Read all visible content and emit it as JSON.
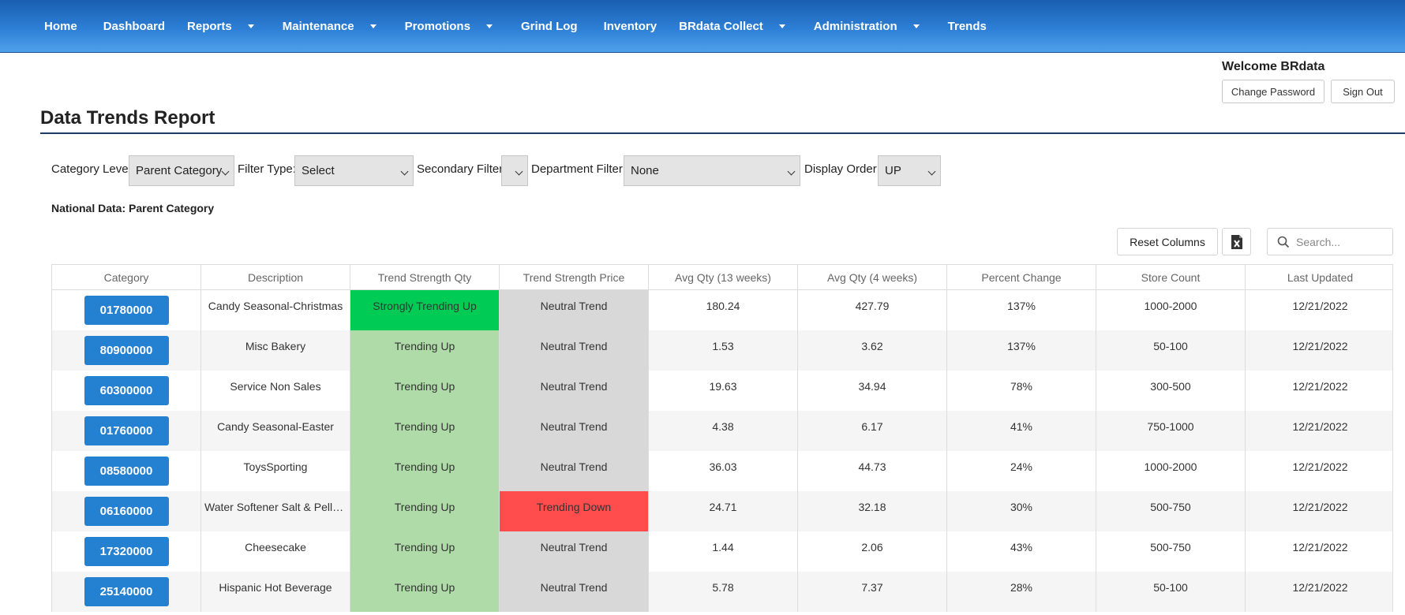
{
  "nav": {
    "items": [
      {
        "label": "Home",
        "dropdown": false
      },
      {
        "label": "Dashboard",
        "dropdown": false
      },
      {
        "label": "Reports",
        "dropdown": true
      },
      {
        "label": "Maintenance",
        "dropdown": true
      },
      {
        "label": "Promotions",
        "dropdown": true
      },
      {
        "label": "Grind Log",
        "dropdown": false
      },
      {
        "label": "Inventory",
        "dropdown": false
      },
      {
        "label": "BRdata Collect",
        "dropdown": true
      },
      {
        "label": "Administration",
        "dropdown": true
      },
      {
        "label": "Trends",
        "dropdown": false
      }
    ]
  },
  "user": {
    "welcome": "Welcome BRdata",
    "change_password": "Change Password",
    "sign_out": "Sign Out"
  },
  "page": {
    "title": "Data Trends Report",
    "subtitle": "National Data: Parent Category"
  },
  "filters": {
    "category_level": {
      "label": "Category Level:",
      "value": "Parent Category"
    },
    "filter_type": {
      "label": "Filter Type:",
      "value": "Select"
    },
    "secondary_filter": {
      "label": "Secondary Filter:",
      "value": ""
    },
    "department_filter": {
      "label": "Department Filter:",
      "value": "None"
    },
    "display_order": {
      "label": "Display Order:",
      "value": "UP"
    }
  },
  "toolbar": {
    "reset_columns": "Reset Columns",
    "excel_icon": "excel-export-icon",
    "search_placeholder": "Search..."
  },
  "colors": {
    "strong_up": "#00cc55",
    "up": "#aedba7",
    "neutral": "#d8d8d8",
    "down": "#ff4d4d",
    "category_button": "#2480d1"
  },
  "table": {
    "columns": [
      "Category",
      "Description",
      "Trend Strength Qty",
      "Trend Strength Price",
      "Avg Qty (13 weeks)",
      "Avg Qty (4 weeks)",
      "Percent Change",
      "Store Count",
      "Last Updated"
    ],
    "rows": [
      {
        "category": "01780000",
        "description": "Candy Seasonal-Christmas",
        "trend_qty": "Strongly Trending Up",
        "trend_price": "Neutral Trend",
        "avg13": "180.24",
        "avg4": "427.79",
        "pct": "137%",
        "stores": "1000-2000",
        "updated": "12/21/2022"
      },
      {
        "category": "80900000",
        "description": "Misc Bakery",
        "trend_qty": "Trending Up",
        "trend_price": "Neutral Trend",
        "avg13": "1.53",
        "avg4": "3.62",
        "pct": "137%",
        "stores": "50-100",
        "updated": "12/21/2022"
      },
      {
        "category": "60300000",
        "description": "Service Non Sales",
        "trend_qty": "Trending Up",
        "trend_price": "Neutral Trend",
        "avg13": "19.63",
        "avg4": "34.94",
        "pct": "78%",
        "stores": "300-500",
        "updated": "12/21/2022"
      },
      {
        "category": "01760000",
        "description": "Candy Seasonal-Easter",
        "trend_qty": "Trending Up",
        "trend_price": "Neutral Trend",
        "avg13": "4.38",
        "avg4": "6.17",
        "pct": "41%",
        "stores": "750-1000",
        "updated": "12/21/2022"
      },
      {
        "category": "08580000",
        "description": "ToysSporting",
        "trend_qty": "Trending Up",
        "trend_price": "Neutral Trend",
        "avg13": "36.03",
        "avg4": "44.73",
        "pct": "24%",
        "stores": "1000-2000",
        "updated": "12/21/2022"
      },
      {
        "category": "06160000",
        "description": "Water Softener Salt & Pelle...",
        "trend_qty": "Trending Up",
        "trend_price": "Trending Down",
        "avg13": "24.71",
        "avg4": "32.18",
        "pct": "30%",
        "stores": "500-750",
        "updated": "12/21/2022"
      },
      {
        "category": "17320000",
        "description": "Cheesecake",
        "trend_qty": "Trending Up",
        "trend_price": "Neutral Trend",
        "avg13": "1.44",
        "avg4": "2.06",
        "pct": "43%",
        "stores": "500-750",
        "updated": "12/21/2022"
      },
      {
        "category": "25140000",
        "description": "Hispanic Hot Beverage",
        "trend_qty": "Trending Up",
        "trend_price": "Neutral Trend",
        "avg13": "5.78",
        "avg4": "7.37",
        "pct": "28%",
        "stores": "50-100",
        "updated": "12/21/2022"
      }
    ]
  }
}
